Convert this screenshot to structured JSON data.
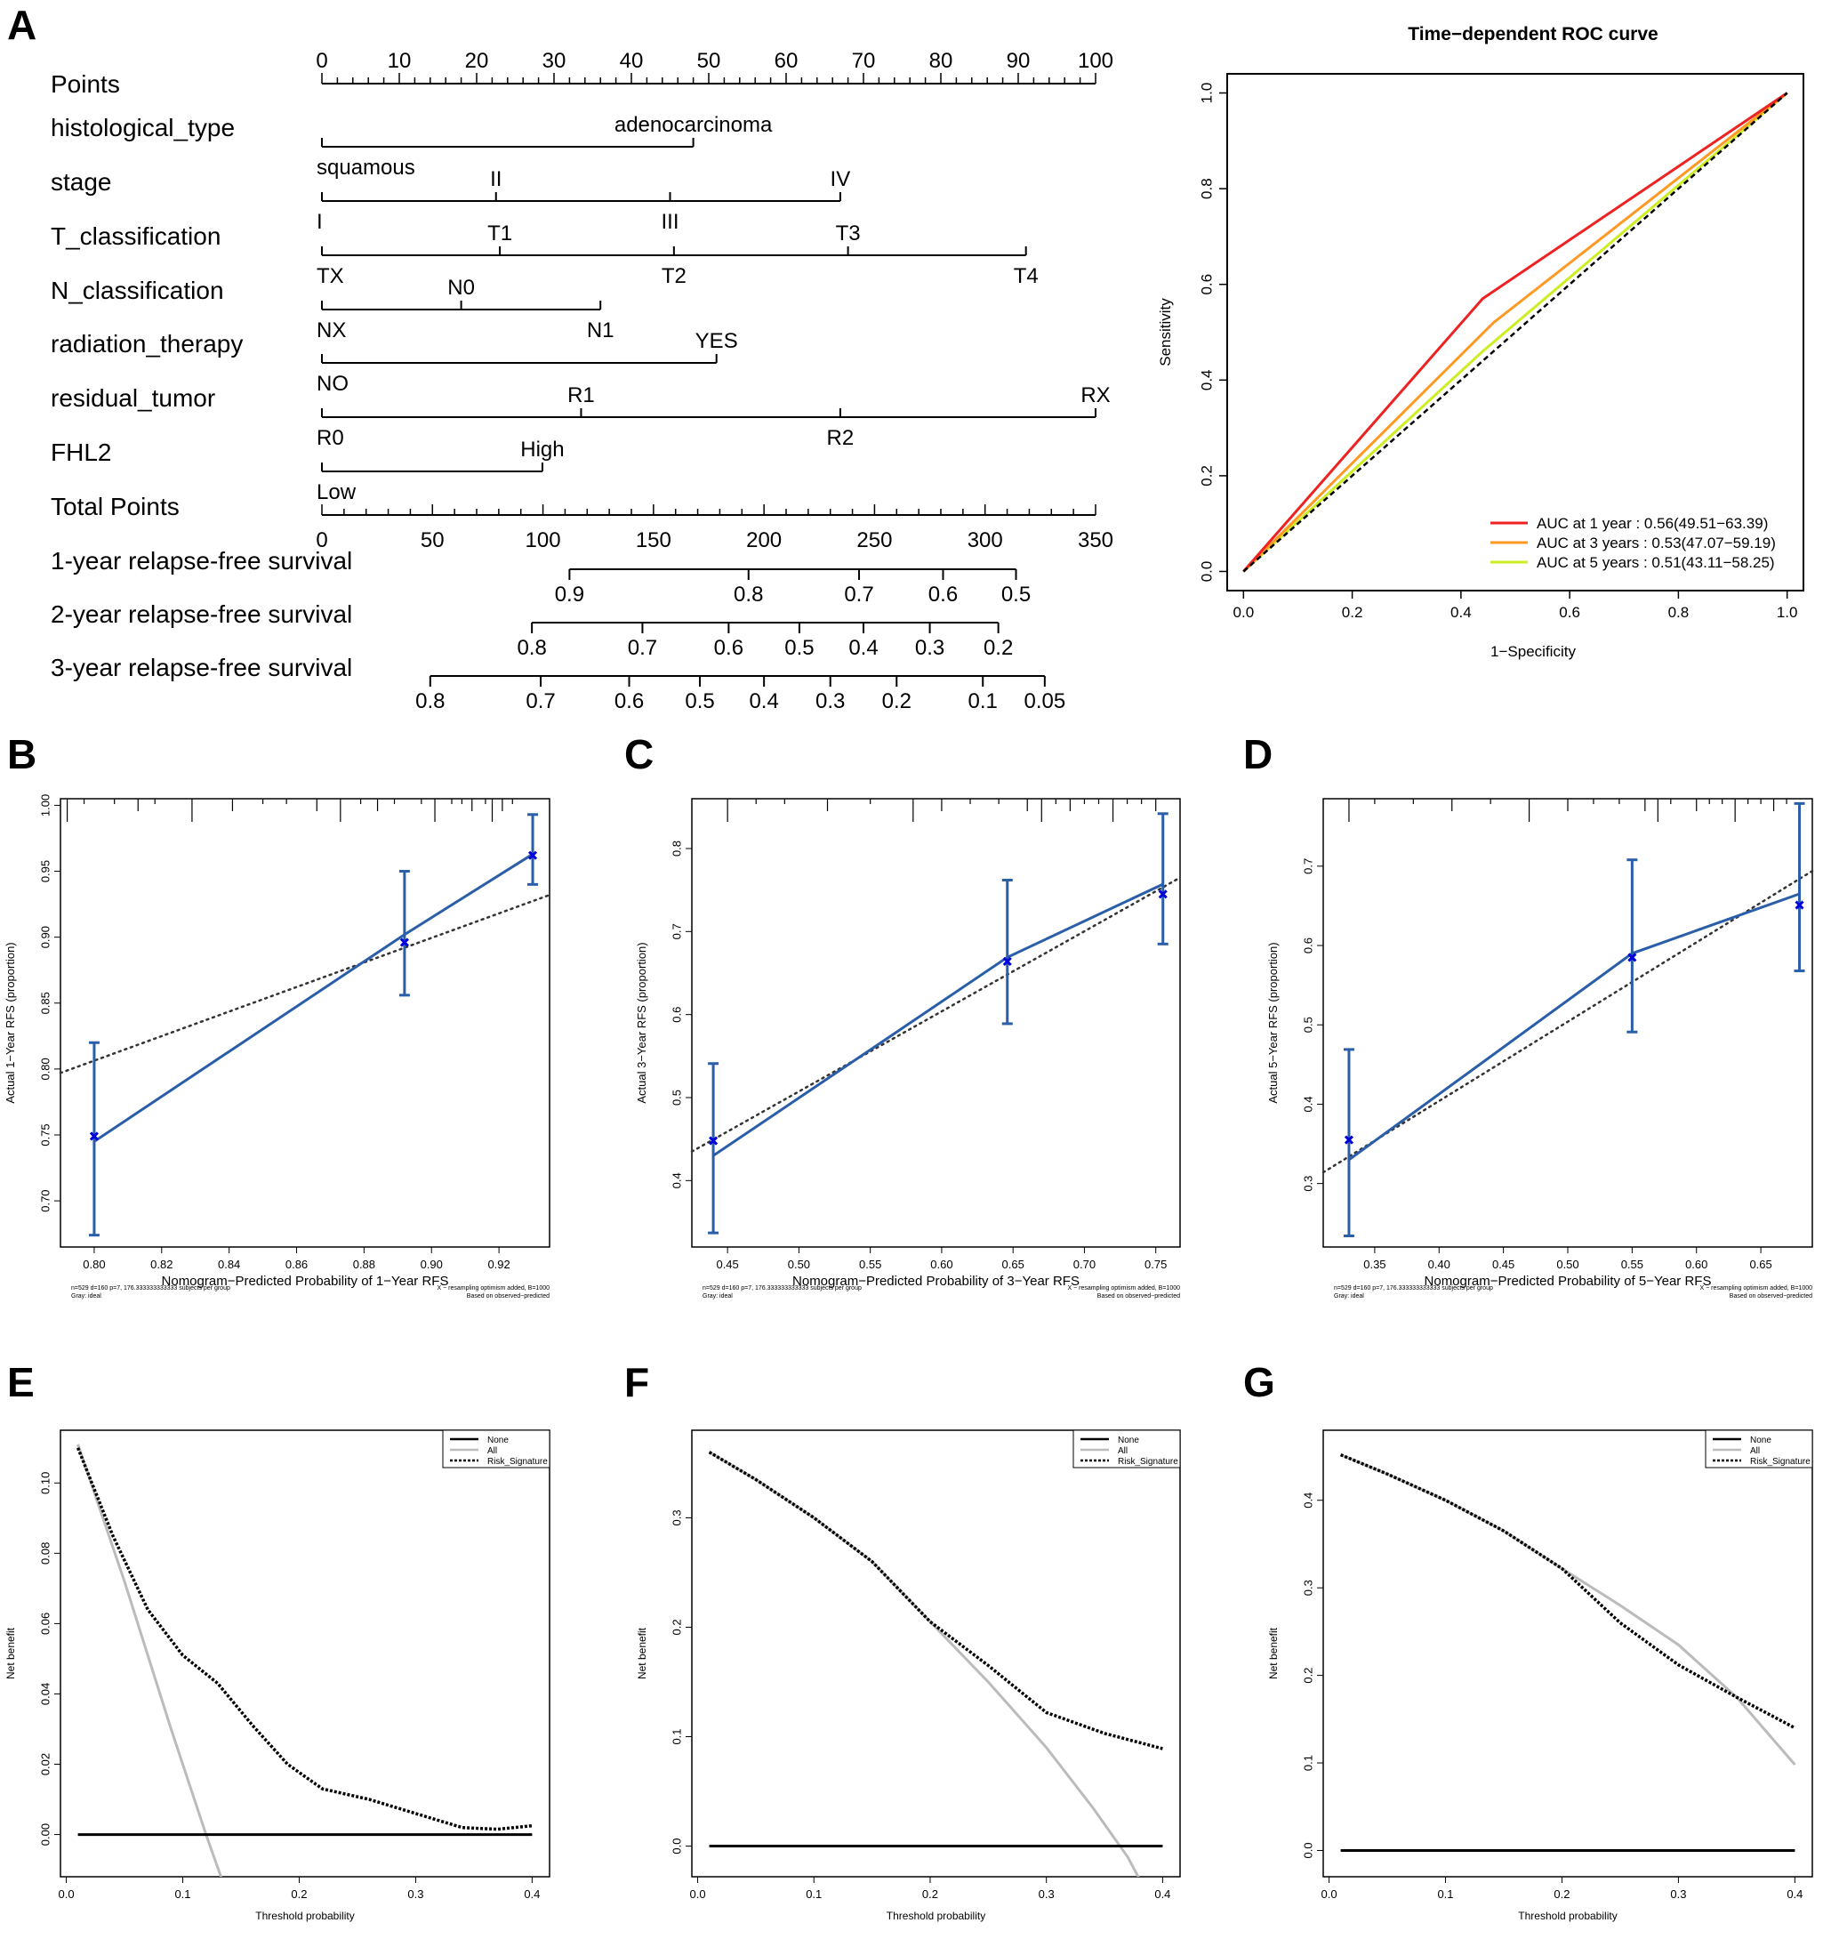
{
  "panel_labels": [
    "A",
    "B",
    "C",
    "D",
    "E",
    "F",
    "G"
  ],
  "chart_data": [
    {
      "panel": "A",
      "type": "nomogram",
      "points_label": "Points",
      "points_ticks": [
        0,
        10,
        20,
        30,
        40,
        50,
        60,
        70,
        80,
        90,
        100
      ],
      "variables": [
        {
          "name": "histological_type",
          "levels": [
            {
              "label": "squamous",
              "points": 0
            },
            {
              "label": "adenocarcinoma",
              "points": 48
            }
          ]
        },
        {
          "name": "stage",
          "levels": [
            {
              "label": "I",
              "points": 0
            },
            {
              "label": "II",
              "points": 22.5
            },
            {
              "label": "III",
              "points": 45
            },
            {
              "label": "IV",
              "points": 67
            }
          ]
        },
        {
          "name": "T_classification",
          "levels": [
            {
              "label": "TX",
              "points": 0
            },
            {
              "label": "T1",
              "points": 23
            },
            {
              "label": "T2",
              "points": 45.5
            },
            {
              "label": "T3",
              "points": 68
            },
            {
              "label": "T4",
              "points": 91
            }
          ]
        },
        {
          "name": "N_classification",
          "levels": [
            {
              "label": "NX",
              "points": 0
            },
            {
              "label": "N0",
              "points": 18
            },
            {
              "label": "N1",
              "points": 36
            }
          ]
        },
        {
          "name": "radiation_therapy",
          "levels": [
            {
              "label": "NO",
              "points": 0
            },
            {
              "label": "YES",
              "points": 51
            }
          ]
        },
        {
          "name": "residual_tumor",
          "levels": [
            {
              "label": "R0",
              "points": 0
            },
            {
              "label": "R1",
              "points": 33.5
            },
            {
              "label": "R2",
              "points": 67
            },
            {
              "label": "RX",
              "points": 100
            }
          ]
        },
        {
          "name": "FHL2",
          "levels": [
            {
              "label": "Low",
              "points": 0
            },
            {
              "label": "High",
              "points": 28.5
            }
          ]
        }
      ],
      "total_points_label": "Total Points",
      "total_points_ticks": [
        0,
        50,
        100,
        150,
        200,
        250,
        300,
        350
      ],
      "total_points_max": 350,
      "survival_scales": [
        {
          "name": "1-year relapse-free survival",
          "ticks": [
            {
              "label": "0.9",
              "total": 112
            },
            {
              "label": "0.8",
              "total": 193
            },
            {
              "label": "0.7",
              "total": 243
            },
            {
              "label": "0.6",
              "total": 281
            },
            {
              "label": "0.5",
              "total": 314
            }
          ]
        },
        {
          "name": "2-year relapse-free survival",
          "ticks": [
            {
              "label": "0.8",
              "total": 95
            },
            {
              "label": "0.7",
              "total": 145
            },
            {
              "label": "0.6",
              "total": 184
            },
            {
              "label": "0.5",
              "total": 216
            },
            {
              "label": "0.4",
              "total": 245
            },
            {
              "label": "0.3",
              "total": 275
            },
            {
              "label": "0.2",
              "total": 306
            }
          ]
        },
        {
          "name": "3-year relapse-free survival",
          "ticks": [
            {
              "label": "0.8",
              "total": 49
            },
            {
              "label": "0.7",
              "total": 99
            },
            {
              "label": "0.6",
              "total": 139
            },
            {
              "label": "0.5",
              "total": 171
            },
            {
              "label": "0.4",
              "total": 200
            },
            {
              "label": "0.3",
              "total": 230
            },
            {
              "label": "0.2",
              "total": 260
            },
            {
              "label": "0.1",
              "total": 299
            },
            {
              "label": "0.05",
              "total": 327
            }
          ]
        }
      ]
    },
    {
      "panel": "A",
      "type": "line",
      "title": "Time−dependent ROC curve",
      "xlabel": "1−Specificity",
      "ylabel": "Sensitivity",
      "xlim": [
        -0.03,
        1.03
      ],
      "ylim": [
        -0.04,
        1.04
      ],
      "xticks": [
        "0.0",
        "0.2",
        "0.4",
        "0.6",
        "0.8",
        "1.0"
      ],
      "yticks": [
        "0.0",
        "0.2",
        "0.4",
        "0.6",
        "0.8",
        "1.0"
      ],
      "legend_position": "bottom-right",
      "series": [
        {
          "name": "AUC at 1 year : 0.56(49.51−63.39)",
          "color": "#ee2222",
          "x": [
            0,
            0.44,
            1
          ],
          "y": [
            0,
            0.57,
            1
          ]
        },
        {
          "name": "AUC at 3 years : 0.53(47.07−59.19)",
          "color": "#ff9922",
          "x": [
            0,
            0.46,
            1
          ],
          "y": [
            0,
            0.52,
            1
          ]
        },
        {
          "name": "AUC at 5 years : 0.51(43.11−58.25)",
          "color": "#ccee22",
          "x": [
            0,
            0.44,
            1
          ],
          "y": [
            0,
            0.46,
            1
          ]
        }
      ],
      "reference": {
        "x": [
          0,
          1
        ],
        "y": [
          0,
          1
        ],
        "style": "dashed",
        "color": "#000000"
      }
    },
    {
      "panel": "B",
      "type": "calibration",
      "xlabel": "Nomogram−Predicted Probability of 1−Year RFS",
      "ylabel": "Actual 1−Year RFS (proportion)",
      "xlim": [
        0.79,
        0.935
      ],
      "ylim": [
        0.665,
        1.005
      ],
      "xticks": [
        0.8,
        0.82,
        0.84,
        0.86,
        0.88,
        0.9,
        0.92
      ],
      "xtick_labels": [
        "0.80",
        "0.82",
        "0.84",
        "0.86",
        "0.88",
        "0.90",
        "0.92"
      ],
      "yticks": [
        0.7,
        0.75,
        0.8,
        0.85,
        0.9,
        0.95,
        1.0
      ],
      "ytick_labels": [
        "0.70",
        "0.75",
        "0.80",
        "0.85",
        "0.90",
        "0.95",
        "1.00"
      ],
      "apparent_line": {
        "x": [
          0.8,
          0.892,
          0.93
        ],
        "y": [
          0.745,
          0.902,
          0.963
        ]
      },
      "points": {
        "x": [
          0.8,
          0.892,
          0.93
        ],
        "y": [
          0.749,
          0.896,
          0.962
        ]
      },
      "error_bars": {
        "low": [
          0.674,
          0.856,
          0.94
        ],
        "high": [
          0.82,
          0.95,
          0.993
        ]
      },
      "ideal_line": {
        "x": [
          0.79,
          0.935
        ],
        "y": [
          0.797,
          0.932
        ]
      },
      "rug": [
        0.792,
        0.797,
        0.806,
        0.813,
        0.818,
        0.829,
        0.841,
        0.85,
        0.857,
        0.866,
        0.873,
        0.879,
        0.884,
        0.889,
        0.897,
        0.901,
        0.906,
        0.909,
        0.912,
        0.916,
        0.918,
        0.921,
        0.924
      ],
      "note_left": [
        "n=529 d=160 p=7, 176.333333333333 subjects per group",
        "Gray: ideal"
      ],
      "note_right": [
        "X − resampling optimism added, B=1000",
        "Based on observed−predicted"
      ]
    },
    {
      "panel": "C",
      "type": "calibration",
      "xlabel": "Nomogram−Predicted Probability of 3−Year RFS",
      "ylabel": "Actual 3−Year RFS (proportion)",
      "xlim": [
        0.425,
        0.767
      ],
      "ylim": [
        0.32,
        0.86
      ],
      "xticks": [
        0.45,
        0.5,
        0.55,
        0.6,
        0.65,
        0.7,
        0.75
      ],
      "xtick_labels": [
        "0.45",
        "0.50",
        "0.55",
        "0.60",
        "0.65",
        "0.70",
        "0.75"
      ],
      "yticks": [
        0.4,
        0.5,
        0.6,
        0.7,
        0.8
      ],
      "ytick_labels": [
        "0.4",
        "0.5",
        "0.6",
        "0.7",
        "0.8"
      ],
      "apparent_line": {
        "x": [
          0.44,
          0.646,
          0.755
        ],
        "y": [
          0.43,
          0.669,
          0.757
        ]
      },
      "points": {
        "x": [
          0.44,
          0.646,
          0.755
        ],
        "y": [
          0.448,
          0.664,
          0.745
        ]
      },
      "error_bars": {
        "low": [
          0.337,
          0.589,
          0.685
        ],
        "high": [
          0.541,
          0.762,
          0.842
        ]
      },
      "ideal_line": {
        "x": [
          0.425,
          0.767
        ],
        "y": [
          0.435,
          0.765
        ]
      },
      "rug": [
        0.45,
        0.47,
        0.49,
        0.52,
        0.55,
        0.58,
        0.6,
        0.62,
        0.64,
        0.66,
        0.67,
        0.68,
        0.69,
        0.7,
        0.71,
        0.72,
        0.73,
        0.74,
        0.75
      ],
      "note_left": [
        "n=529 d=160 p=7, 176.333333333333 subjects per group",
        "Gray: ideal"
      ],
      "note_right": [
        "X − resampling optimism added, B=1000",
        "Based on observed−predicted"
      ]
    },
    {
      "panel": "D",
      "type": "calibration",
      "xlabel": "Nomogram−Predicted Probability of 5−Year RFS",
      "ylabel": "Actual 5−Year RFS (proportion)",
      "xlim": [
        0.31,
        0.69
      ],
      "ylim": [
        0.22,
        0.785
      ],
      "xticks": [
        0.35,
        0.4,
        0.45,
        0.5,
        0.55,
        0.6,
        0.65
      ],
      "xtick_labels": [
        "0.35",
        "0.40",
        "0.45",
        "0.50",
        "0.55",
        "0.60",
        "0.65"
      ],
      "yticks": [
        0.3,
        0.4,
        0.5,
        0.6,
        0.7
      ],
      "ytick_labels": [
        "0.3",
        "0.4",
        "0.5",
        "0.6",
        "0.7"
      ],
      "apparent_line": {
        "x": [
          0.33,
          0.55,
          0.68
        ],
        "y": [
          0.33,
          0.59,
          0.665
        ]
      },
      "points": {
        "x": [
          0.33,
          0.55,
          0.68
        ],
        "y": [
          0.355,
          0.585,
          0.651
        ]
      },
      "error_bars": {
        "low": [
          0.234,
          0.491,
          0.568
        ],
        "high": [
          0.469,
          0.708,
          0.779
        ]
      },
      "ideal_line": {
        "x": [
          0.31,
          0.69
        ],
        "y": [
          0.314,
          0.694
        ]
      },
      "rug": [
        0.33,
        0.35,
        0.38,
        0.41,
        0.44,
        0.47,
        0.5,
        0.52,
        0.54,
        0.56,
        0.57,
        0.58,
        0.6,
        0.61,
        0.62,
        0.63,
        0.64,
        0.65,
        0.66,
        0.67
      ],
      "note_left": [
        "n=529 d=160 p=7, 176.333333333333 subjects per group",
        "Gray: ideal"
      ],
      "note_right": [
        "X − resampling optimism added, B=1000",
        "Based on observed−predicted"
      ]
    },
    {
      "panel": "E",
      "type": "line",
      "xlabel": "Threshold probability",
      "ylabel": "Net benefit",
      "xlim": [
        -0.005,
        0.415
      ],
      "ylim": [
        -0.012,
        0.115
      ],
      "xticks": [
        "0.0",
        "0.1",
        "0.2",
        "0.3",
        "0.4"
      ],
      "yticks": [
        "0.00",
        "0.02",
        "0.04",
        "0.06",
        "0.08",
        "0.10"
      ],
      "legend_position": "top-right",
      "series": [
        {
          "name": "None",
          "style": "solid",
          "color": "#000000",
          "x": [
            0.01,
            0.4
          ],
          "y": [
            0,
            0
          ]
        },
        {
          "name": "All",
          "style": "solid",
          "color": "#bbbbbb",
          "x": [
            0.01,
            0.05,
            0.09,
            0.12,
            0.135
          ],
          "y": [
            0.111,
            0.072,
            0.03,
            0.0,
            -0.014
          ]
        },
        {
          "name": "Risk_Signature",
          "style": "dashed",
          "color": "#000000",
          "x": [
            0.01,
            0.04,
            0.07,
            0.1,
            0.13,
            0.16,
            0.19,
            0.22,
            0.26,
            0.3,
            0.34,
            0.37,
            0.4
          ],
          "y": [
            0.11,
            0.085,
            0.064,
            0.051,
            0.043,
            0.031,
            0.02,
            0.013,
            0.01,
            0.006,
            0.002,
            0.0015,
            0.0025
          ]
        }
      ]
    },
    {
      "panel": "F",
      "type": "line",
      "xlabel": "Threshold probability",
      "ylabel": "Net benefit",
      "xlim": [
        -0.005,
        0.415
      ],
      "ylim": [
        -0.028,
        0.38
      ],
      "xticks": [
        "0.0",
        "0.1",
        "0.2",
        "0.3",
        "0.4"
      ],
      "yticks": [
        "0.0",
        "0.1",
        "0.2",
        "0.3"
      ],
      "legend_position": "top-right",
      "series": [
        {
          "name": "None",
          "style": "solid",
          "color": "#000000",
          "x": [
            0.01,
            0.4
          ],
          "y": [
            0,
            0
          ]
        },
        {
          "name": "All",
          "style": "solid",
          "color": "#bbbbbb",
          "x": [
            0.01,
            0.05,
            0.1,
            0.15,
            0.2,
            0.25,
            0.3,
            0.34,
            0.37,
            0.38
          ],
          "y": [
            0.36,
            0.335,
            0.3,
            0.26,
            0.205,
            0.15,
            0.09,
            0.035,
            -0.01,
            -0.03
          ]
        },
        {
          "name": "Risk_Signature",
          "style": "dashed",
          "color": "#000000",
          "x": [
            0.01,
            0.05,
            0.1,
            0.15,
            0.2,
            0.25,
            0.3,
            0.35,
            0.4
          ],
          "y": [
            0.36,
            0.335,
            0.3,
            0.26,
            0.205,
            0.165,
            0.122,
            0.103,
            0.089
          ]
        }
      ]
    },
    {
      "panel": "G",
      "type": "line",
      "xlabel": "Threshold probability",
      "ylabel": "Net benefit",
      "xlim": [
        -0.005,
        0.415
      ],
      "ylim": [
        -0.03,
        0.48
      ],
      "xticks": [
        "0.0",
        "0.1",
        "0.2",
        "0.3",
        "0.4"
      ],
      "yticks": [
        "0.0",
        "0.1",
        "0.2",
        "0.3",
        "0.4"
      ],
      "legend_position": "top-right",
      "series": [
        {
          "name": "None",
          "style": "solid",
          "color": "#000000",
          "x": [
            0.01,
            0.4
          ],
          "y": [
            0,
            0
          ]
        },
        {
          "name": "All",
          "style": "solid",
          "color": "#bbbbbb",
          "x": [
            0.01,
            0.05,
            0.1,
            0.15,
            0.2,
            0.25,
            0.3,
            0.35,
            0.4
          ],
          "y": [
            0.452,
            0.43,
            0.4,
            0.365,
            0.322,
            0.28,
            0.235,
            0.175,
            0.098
          ]
        },
        {
          "name": "Risk_Signature",
          "style": "dashed",
          "color": "#000000",
          "x": [
            0.01,
            0.05,
            0.1,
            0.15,
            0.2,
            0.25,
            0.3,
            0.35,
            0.4
          ],
          "y": [
            0.452,
            0.43,
            0.4,
            0.365,
            0.322,
            0.26,
            0.212,
            0.175,
            0.14
          ]
        }
      ]
    }
  ]
}
